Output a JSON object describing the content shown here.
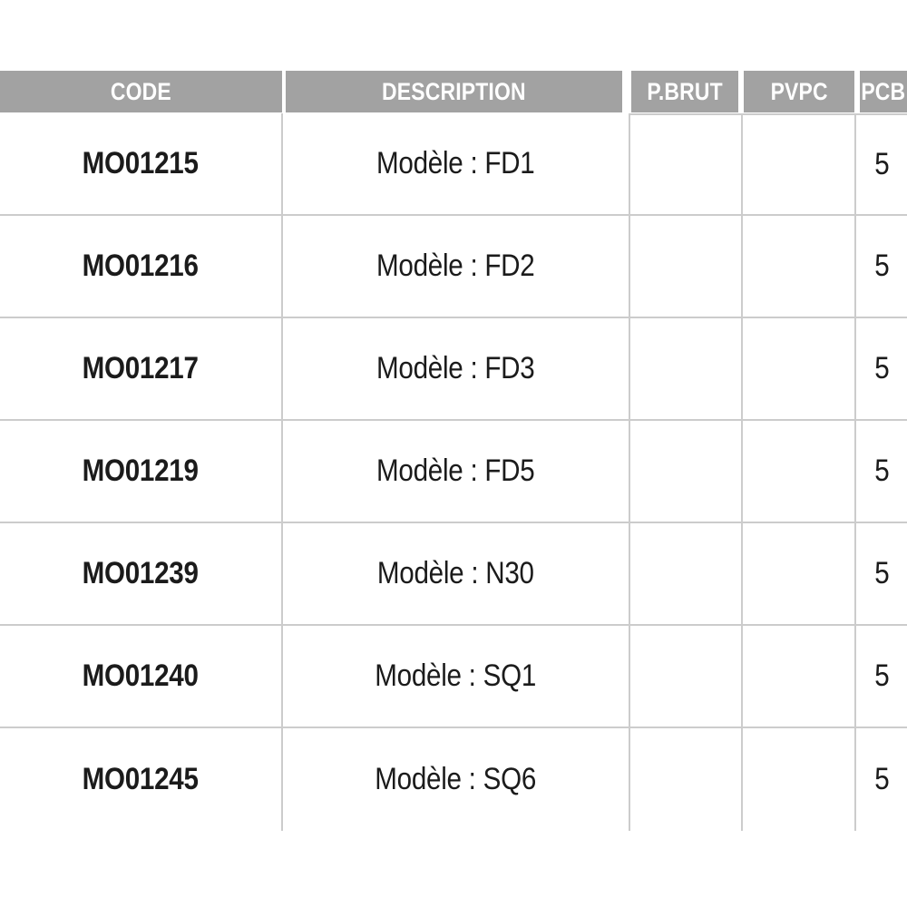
{
  "colors": {
    "header_bg": "#a2a2a2",
    "header_text": "#ffffff",
    "grid_line": "#cccccc",
    "body_text": "#1b1b1b"
  },
  "table": {
    "columns": [
      {
        "key": "code",
        "label": "CODE"
      },
      {
        "key": "description",
        "label": "DESCRIPTION"
      },
      {
        "key": "p_brut",
        "label": "P.BRUT"
      },
      {
        "key": "pvpc",
        "label": "PVPC"
      },
      {
        "key": "pcb",
        "label": "PCB"
      }
    ],
    "rows": [
      {
        "code": "MO01215",
        "description": "Modèle : FD1",
        "p_brut": "",
        "pvpc": "",
        "pcb": "5"
      },
      {
        "code": "MO01216",
        "description": "Modèle : FD2",
        "p_brut": "",
        "pvpc": "",
        "pcb": "5"
      },
      {
        "code": "MO01217",
        "description": "Modèle : FD3",
        "p_brut": "",
        "pvpc": "",
        "pcb": "5"
      },
      {
        "code": "MO01219",
        "description": "Modèle : FD5",
        "p_brut": "",
        "pvpc": "",
        "pcb": "5"
      },
      {
        "code": "MO01239",
        "description": "Modèle : N30",
        "p_brut": "",
        "pvpc": "",
        "pcb": "5"
      },
      {
        "code": "MO01240",
        "description": "Modèle : SQ1",
        "p_brut": "",
        "pvpc": "",
        "pcb": "5"
      },
      {
        "code": "MO01245",
        "description": "Modèle : SQ6",
        "p_brut": "",
        "pvpc": "",
        "pcb": "5"
      }
    ]
  }
}
